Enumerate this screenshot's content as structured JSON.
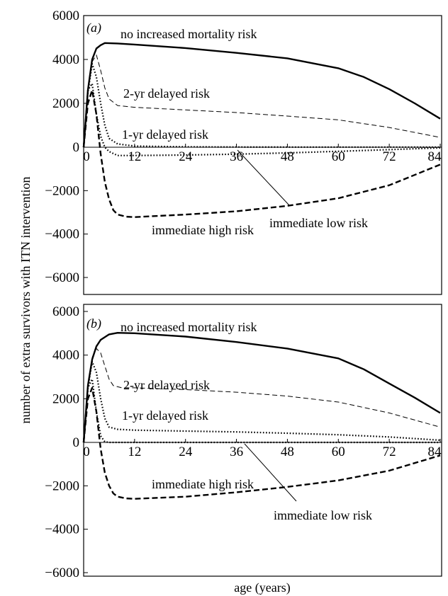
{
  "figure": {
    "ylabel": "number of extra survivors with ITN intervention",
    "xlabel": "age (years)"
  },
  "chart_data": [
    {
      "type": "line",
      "panel": "(a)",
      "xlim": [
        0,
        84
      ],
      "ylim": [
        -6000,
        6000
      ],
      "xticks": [
        0,
        12,
        24,
        36,
        48,
        60,
        72,
        84
      ],
      "yticks": [
        6000,
        4000,
        2000,
        0,
        -2000,
        -4000,
        -6000
      ],
      "series": [
        {
          "name": "no increased mortality risk",
          "style": "solid-thick",
          "points": [
            [
              0,
              0
            ],
            [
              1,
              2600
            ],
            [
              2,
              4000
            ],
            [
              3,
              4500
            ],
            [
              4,
              4650
            ],
            [
              5,
              4750
            ],
            [
              8,
              4730
            ],
            [
              12,
              4680
            ],
            [
              24,
              4520
            ],
            [
              36,
              4300
            ],
            [
              48,
              4050
            ],
            [
              60,
              3600
            ],
            [
              66,
              3200
            ],
            [
              72,
              2650
            ],
            [
              78,
              2000
            ],
            [
              84,
              1300
            ]
          ]
        },
        {
          "name": "2-yr delayed risk",
          "style": "dashed-thin",
          "points": [
            [
              0,
              0
            ],
            [
              1,
              2600
            ],
            [
              2,
              3900
            ],
            [
              3,
              4200
            ],
            [
              4,
              3500
            ],
            [
              5,
              2700
            ],
            [
              6,
              2200
            ],
            [
              8,
              1900
            ],
            [
              12,
              1820
            ],
            [
              24,
              1700
            ],
            [
              36,
              1580
            ],
            [
              48,
              1420
            ],
            [
              60,
              1250
            ],
            [
              72,
              900
            ],
            [
              84,
              450
            ]
          ]
        },
        {
          "name": "1-yr delayed risk",
          "style": "dotted",
          "points": [
            [
              0,
              0
            ],
            [
              1,
              2500
            ],
            [
              2,
              3800
            ],
            [
              3,
              3200
            ],
            [
              4,
              2000
            ],
            [
              5,
              1000
            ],
            [
              6,
              400
            ],
            [
              8,
              150
            ],
            [
              12,
              50
            ],
            [
              24,
              20
            ],
            [
              36,
              10
            ],
            [
              48,
              5
            ],
            [
              60,
              5
            ],
            [
              72,
              5
            ],
            [
              84,
              5
            ]
          ]
        },
        {
          "name": "immediate low risk",
          "style": "dotted",
          "points": [
            [
              0,
              0
            ],
            [
              1,
              2600
            ],
            [
              2,
              2900
            ],
            [
              3,
              1500
            ],
            [
              4,
              500
            ],
            [
              5,
              0
            ],
            [
              6,
              -200
            ],
            [
              8,
              -380
            ],
            [
              12,
              -380
            ],
            [
              24,
              -360
            ],
            [
              36,
              -320
            ],
            [
              48,
              -260
            ],
            [
              60,
              -190
            ],
            [
              72,
              -110
            ],
            [
              84,
              -30
            ]
          ]
        },
        {
          "name": "immediate high risk",
          "style": "dashed-thick",
          "points": [
            [
              0,
              0
            ],
            [
              1,
              2000
            ],
            [
              2,
              2600
            ],
            [
              3,
              1500
            ],
            [
              4,
              -300
            ],
            [
              5,
              -1600
            ],
            [
              6,
              -2400
            ],
            [
              7,
              -2900
            ],
            [
              8,
              -3100
            ],
            [
              10,
              -3200
            ],
            [
              12,
              -3220
            ],
            [
              24,
              -3100
            ],
            [
              36,
              -2950
            ],
            [
              48,
              -2700
            ],
            [
              60,
              -2350
            ],
            [
              72,
              -1750
            ],
            [
              84,
              -800
            ]
          ]
        }
      ],
      "annotations": [
        {
          "text": "no increased mortality risk",
          "series": "no increased mortality risk"
        },
        {
          "text": "2-yr delayed risk",
          "series": "2-yr delayed risk"
        },
        {
          "text": "1-yr delayed risk",
          "series": "1-yr delayed risk"
        },
        {
          "text": "immediate high risk",
          "series": "immediate high risk"
        },
        {
          "text": "immediate low risk",
          "series": "immediate low risk",
          "pointer": true
        }
      ]
    },
    {
      "type": "line",
      "panel": "(b)",
      "xlim": [
        0,
        84
      ],
      "ylim": [
        -6000,
        6000
      ],
      "xticks": [
        0,
        12,
        24,
        36,
        48,
        60,
        72,
        84
      ],
      "yticks": [
        6000,
        4000,
        2000,
        0,
        -2000,
        -4000,
        -6000
      ],
      "series": [
        {
          "name": "no increased mortality risk",
          "style": "solid-thick",
          "points": [
            [
              0,
              0
            ],
            [
              1,
              2600
            ],
            [
              2,
              3800
            ],
            [
              3,
              4400
            ],
            [
              4,
              4700
            ],
            [
              6,
              4950
            ],
            [
              8,
              5020
            ],
            [
              12,
              5000
            ],
            [
              24,
              4850
            ],
            [
              36,
              4600
            ],
            [
              48,
              4300
            ],
            [
              60,
              3850
            ],
            [
              66,
              3350
            ],
            [
              72,
              2700
            ],
            [
              78,
              2050
            ],
            [
              84,
              1350
            ]
          ]
        },
        {
          "name": "2-yr delayed risk",
          "style": "dashed-thin",
          "points": [
            [
              0,
              0
            ],
            [
              1,
              2600
            ],
            [
              2,
              3900
            ],
            [
              3,
              4300
            ],
            [
              4,
              4100
            ],
            [
              5,
              3500
            ],
            [
              6,
              2900
            ],
            [
              7,
              2600
            ],
            [
              9,
              2500
            ],
            [
              12,
              2500
            ],
            [
              24,
              2420
            ],
            [
              36,
              2300
            ],
            [
              48,
              2120
            ],
            [
              60,
              1850
            ],
            [
              72,
              1350
            ],
            [
              84,
              700
            ]
          ]
        },
        {
          "name": "1-yr delayed risk",
          "style": "dotted",
          "points": [
            [
              0,
              0
            ],
            [
              1,
              2500
            ],
            [
              2,
              3700
            ],
            [
              3,
              3200
            ],
            [
              4,
              2000
            ],
            [
              5,
              1100
            ],
            [
              6,
              700
            ],
            [
              8,
              600
            ],
            [
              12,
              560
            ],
            [
              24,
              520
            ],
            [
              36,
              480
            ],
            [
              48,
              420
            ],
            [
              60,
              350
            ],
            [
              72,
              250
            ],
            [
              84,
              100
            ]
          ]
        },
        {
          "name": "immediate low risk",
          "style": "dotted",
          "points": [
            [
              0,
              0
            ],
            [
              1,
              2500
            ],
            [
              2,
              2900
            ],
            [
              3,
              1400
            ],
            [
              4,
              300
            ],
            [
              5,
              30
            ],
            [
              6,
              0
            ],
            [
              12,
              0
            ],
            [
              24,
              0
            ],
            [
              36,
              0
            ],
            [
              48,
              0
            ],
            [
              60,
              0
            ],
            [
              72,
              0
            ],
            [
              84,
              0
            ]
          ]
        },
        {
          "name": "immediate high risk",
          "style": "dashed-thick",
          "points": [
            [
              0,
              0
            ],
            [
              1,
              2000
            ],
            [
              2,
              2500
            ],
            [
              3,
              1400
            ],
            [
              4,
              -300
            ],
            [
              5,
              -1400
            ],
            [
              6,
              -2000
            ],
            [
              7,
              -2350
            ],
            [
              8,
              -2500
            ],
            [
              10,
              -2580
            ],
            [
              12,
              -2600
            ],
            [
              24,
              -2500
            ],
            [
              36,
              -2300
            ],
            [
              48,
              -2050
            ],
            [
              60,
              -1750
            ],
            [
              72,
              -1300
            ],
            [
              84,
              -600
            ]
          ]
        }
      ],
      "annotations": [
        {
          "text": "no increased mortality risk",
          "series": "no increased mortality risk"
        },
        {
          "text": "2-yr delayed risk",
          "series": "2-yr delayed risk"
        },
        {
          "text": "1-yr delayed risk",
          "series": "1-yr delayed risk"
        },
        {
          "text": "immediate high risk",
          "series": "immediate high risk"
        },
        {
          "text": "immediate low risk",
          "series": "immediate low risk",
          "pointer": true
        }
      ]
    }
  ]
}
